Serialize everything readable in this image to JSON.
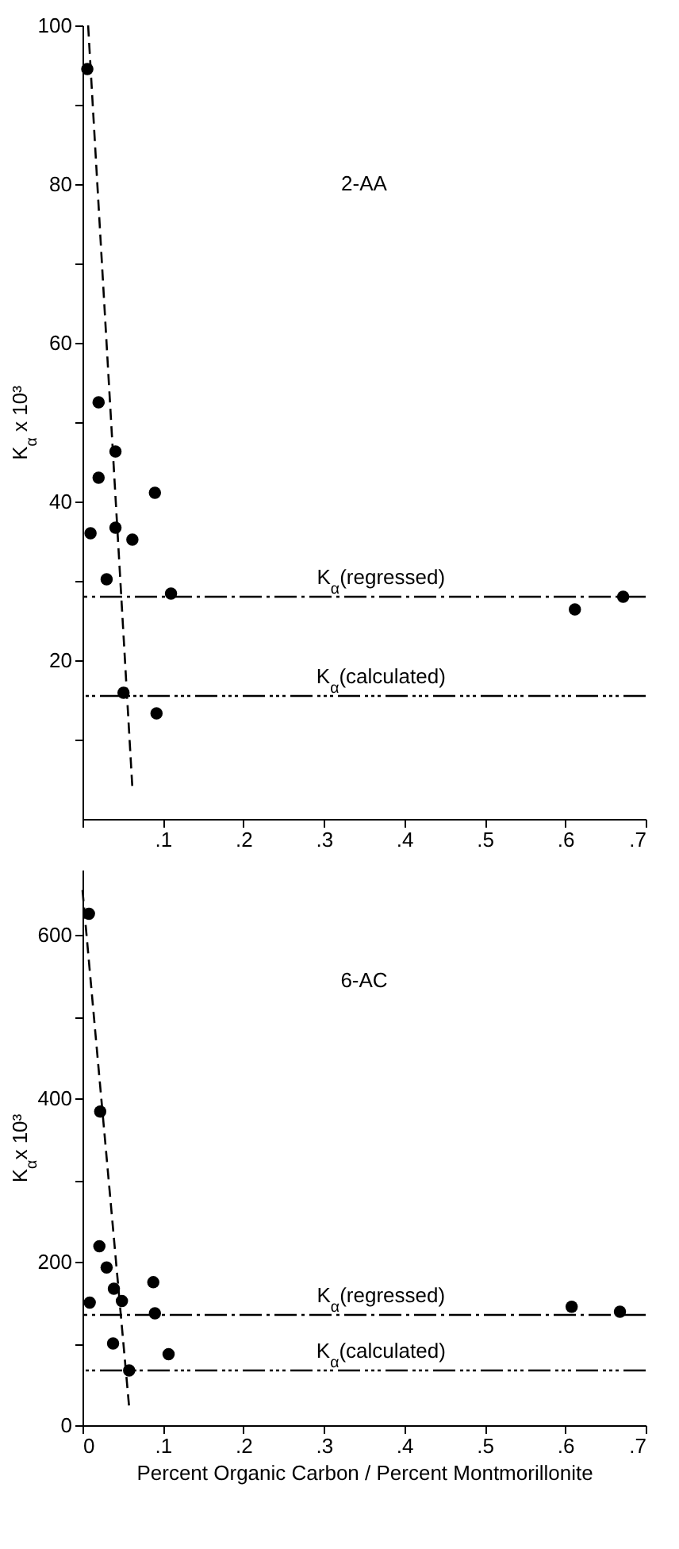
{
  "chart_data": [
    {
      "type": "scatter",
      "title": "2-AA",
      "ylabel": "K$_{α}$ x 10³",
      "grid": false,
      "xlim": [
        0,
        0.7
      ],
      "xticks": [
        {
          "value": 0,
          "label": null
        },
        {
          "value": 0.1,
          "label": ".1"
        },
        {
          "value": 0.2,
          "label": ".2"
        },
        {
          "value": 0.3,
          "label": ".3"
        },
        {
          "value": 0.4,
          "label": ".4"
        },
        {
          "value": 0.5,
          "label": ".5"
        },
        {
          "value": 0.6,
          "label": ".6"
        },
        {
          "value": 0.7,
          "label": ".7"
        }
      ],
      "ylim": [
        0,
        100
      ],
      "yticks": [
        {
          "value": 10,
          "label": null
        },
        20,
        {
          "value": 30,
          "label": null
        },
        40,
        {
          "value": 50,
          "label": null
        },
        60,
        {
          "value": 70,
          "label": null
        },
        80,
        {
          "value": 90,
          "label": null
        },
        100
      ],
      "series": [
        {
          "color": "#000000",
          "marker": "circle",
          "x": [
            0.006,
            0.02,
            0.041,
            0.02,
            0.01,
            0.041,
            0.062,
            0.09,
            0.03,
            0.11,
            0.051,
            0.092,
            0.612,
            0.672
          ],
          "values": [
            94.5,
            52.5,
            46.3,
            43,
            36,
            36.7,
            35.2,
            41.1,
            30.2,
            28.4,
            15.9,
            13.3,
            26.4,
            28
          ]
        },
        {
          "type": "line",
          "color": "#000000",
          "marker": "none",
          "line_style": "dashed",
          "x": [
            0.007,
            0.062
          ],
          "values": [
            100,
            3.9
          ]
        }
      ],
      "ref_lines": [
        {
          "axis": "y",
          "value": 28,
          "label": "K$_{α}$(regressed)",
          "line_style": "dashdot"
        },
        {
          "axis": "y",
          "value": 15.5,
          "label": "K$_{α}$(calculated)",
          "line_style": "dashdotdot"
        }
      ]
    },
    {
      "type": "scatter",
      "title": "6-AC",
      "xlabel": "Percent Organic Carbon / Percent Montmorillonite",
      "ylabel": "K$_{α}$x 10³",
      "grid": false,
      "xlim": [
        0,
        0.7
      ],
      "xticks": [
        0,
        {
          "value": 0.1,
          "label": ".1"
        },
        {
          "value": 0.2,
          "label": ".2"
        },
        {
          "value": 0.3,
          "label": ".3"
        },
        {
          "value": 0.4,
          "label": ".4"
        },
        {
          "value": 0.5,
          "label": ".5"
        },
        {
          "value": 0.6,
          "label": ".6"
        },
        {
          "value": 0.7,
          "label": ".7"
        }
      ],
      "ylim": [
        0,
        680
      ],
      "yticks": [
        0,
        {
          "value": 100,
          "label": null
        },
        200,
        {
          "value": 300,
          "label": null
        },
        400,
        {
          "value": 500,
          "label": null
        },
        600
      ],
      "series": [
        {
          "color": "#000000",
          "marker": "circle",
          "x": [
            0.008,
            0.022,
            0.021,
            0.03,
            0.039,
            0.009,
            0.049,
            0.038,
            0.088,
            0.09,
            0.107,
            0.058,
            0.608,
            0.668
          ],
          "values": [
            626,
            384,
            219,
            193,
            167,
            150,
            152,
            100,
            175,
            137,
            87,
            67,
            145,
            139
          ]
        },
        {
          "type": "line",
          "color": "#000000",
          "marker": "none",
          "line_style": "dashed",
          "x": [
            0,
            0.058
          ],
          "values": [
            655,
            22
          ]
        }
      ],
      "ref_lines": [
        {
          "axis": "y",
          "value": 135,
          "label": "K$_{α}$(regressed)",
          "line_style": "dashdot"
        },
        {
          "axis": "y",
          "value": 67,
          "label": "K$_{α}$(calculated)",
          "line_style": "dashdotdot"
        }
      ]
    }
  ]
}
